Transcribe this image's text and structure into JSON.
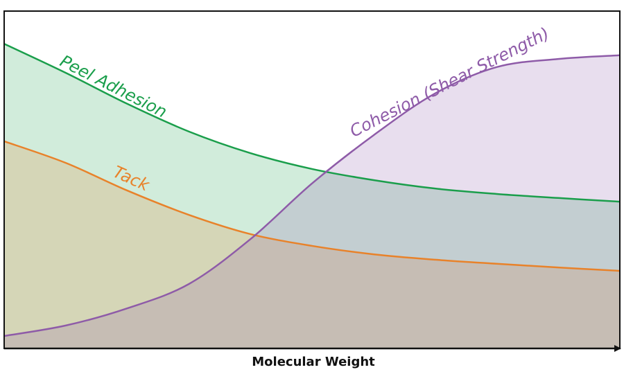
{
  "chart_data": {
    "type": "area",
    "x_label": "Molecular Weight",
    "x": [
      0,
      10,
      20,
      30,
      40,
      50,
      60,
      70,
      80,
      90,
      100
    ],
    "xlim": [
      0,
      100
    ],
    "ylim": [
      0,
      100
    ],
    "series": [
      {
        "name": "Peel Adhesion",
        "color": "#1a9e4b",
        "values": [
          90.3,
          81.7,
          72.5,
          64.3,
          57.9,
          53.2,
          49.9,
          47.4,
          45.8,
          44.6,
          43.5
        ]
      },
      {
        "name": "Tack",
        "color": "#e8822a",
        "values": [
          61.4,
          55.0,
          46.8,
          39.6,
          33.9,
          30.4,
          27.9,
          26.3,
          25.1,
          24.0,
          23.0
        ]
      },
      {
        "name": "Cohesion (Shear Strength)",
        "color": "#8e5ba8",
        "values": [
          3.7,
          6.8,
          11.9,
          19.1,
          32.4,
          48.9,
          63.2,
          75.6,
          83.4,
          85.8,
          86.9
        ]
      }
    ]
  }
}
